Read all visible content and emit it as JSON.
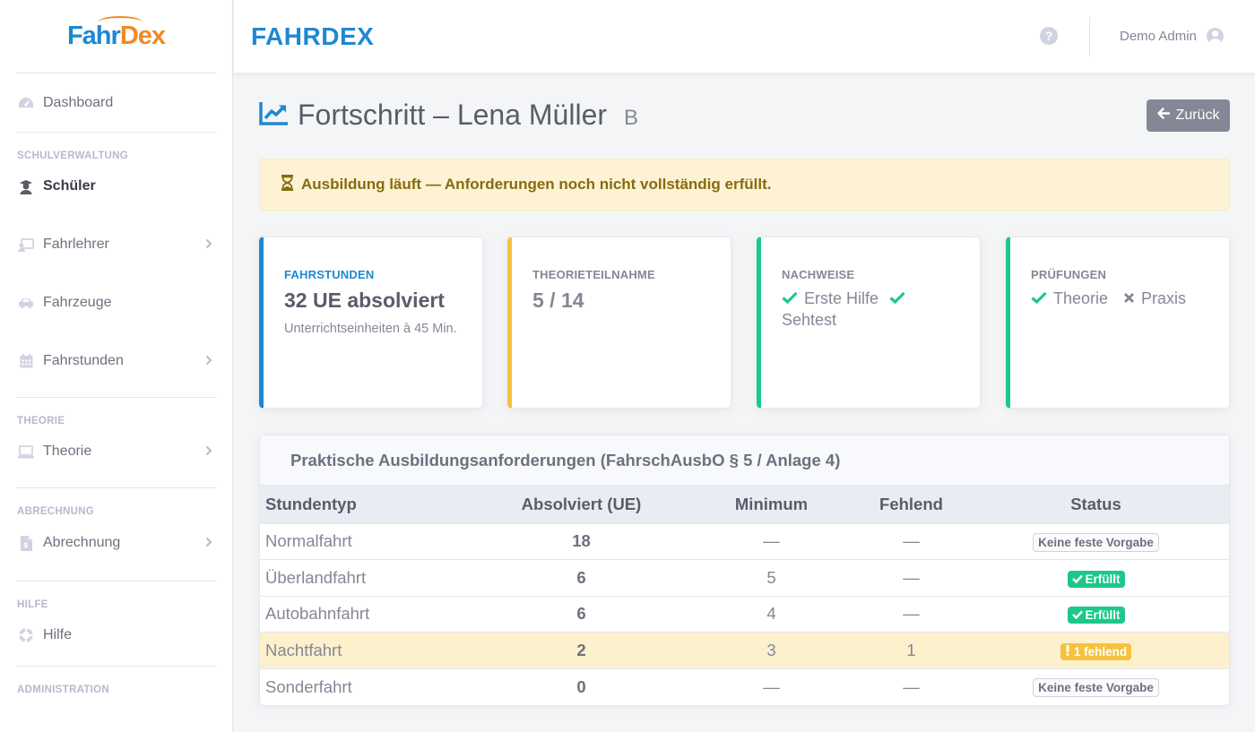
{
  "sidebar": {
    "logo": {
      "part1": "Fahr",
      "part2": "Dex"
    },
    "items": {
      "dashboard": {
        "label": "Dashboard",
        "icon": "gauge-icon"
      },
      "heading_school": "SCHULVERWALTUNG",
      "schueler": {
        "label": "Schüler",
        "icon": "student-icon"
      },
      "fahrlehrer": {
        "label": "Fahrlehrer",
        "icon": "instructor-icon"
      },
      "fahrzeuge": {
        "label": "Fahrzeuge",
        "icon": "car-icon"
      },
      "fahrstunden": {
        "label": "Fahrstunden",
        "icon": "calendar-icon"
      },
      "heading_theory": "THEORIE",
      "theorie": {
        "label": "Theorie",
        "icon": "laptop-icon"
      },
      "heading_billing": "ABRECHNUNG",
      "abrechnung": {
        "label": "Abrechnung",
        "icon": "invoice-icon"
      },
      "heading_help": "HILFE",
      "hilfe": {
        "label": "Hilfe",
        "icon": "lifebuoy-icon"
      },
      "heading_admin": "ADMINISTRATION"
    }
  },
  "topbar": {
    "brand": "FAHRDEX",
    "help_icon": "?",
    "user_name": "Demo Admin"
  },
  "page": {
    "title": "Fortschritt – Lena Müller",
    "license_class": "B",
    "back_label": "Zurück"
  },
  "alert": {
    "text": "Ausbildung läuft — Anforderungen noch nicht vollständig erfüllt."
  },
  "cards": {
    "fahrstunden": {
      "label": "FAHRSTUNDEN",
      "value": "32 UE absolviert",
      "sub": "Unterrichtseinheiten à 45 Min."
    },
    "theorie": {
      "label": "THEORIETEILNAHME",
      "value": "5 / 14"
    },
    "nachweise": {
      "label": "NACHWEISE",
      "item1": "Erste Hilfe",
      "item2": "Sehtest"
    },
    "pruefungen": {
      "label": "PRÜFUNGEN",
      "item1": "Theorie",
      "item2": "Praxis"
    }
  },
  "colors": {
    "primary": "#1e88d2",
    "warning": "#f6c23e",
    "success": "#1cc88a"
  },
  "requirements": {
    "title": "Praktische Ausbildungsanforderungen (FahrschAusbO § 5 / Anlage 4)",
    "columns": [
      "Stundentyp",
      "Absolviert (UE)",
      "Minimum",
      "Fehlend",
      "Status"
    ],
    "rows": [
      {
        "type": "Normalfahrt",
        "done": "18",
        "min": "—",
        "missing": "—",
        "status": "Keine feste Vorgabe"
      },
      {
        "type": "Überlandfahrt",
        "done": "6",
        "min": "5",
        "missing": "—",
        "status": "Erfüllt"
      },
      {
        "type": "Autobahnfahrt",
        "done": "6",
        "min": "4",
        "missing": "—",
        "status": "Erfüllt"
      },
      {
        "type": "Nachtfahrt",
        "done": "2",
        "min": "3",
        "missing": "1",
        "status": "1 fehlend"
      },
      {
        "type": "Sonderfahrt",
        "done": "0",
        "min": "—",
        "missing": "—",
        "status": "Keine feste Vorgabe"
      }
    ]
  }
}
